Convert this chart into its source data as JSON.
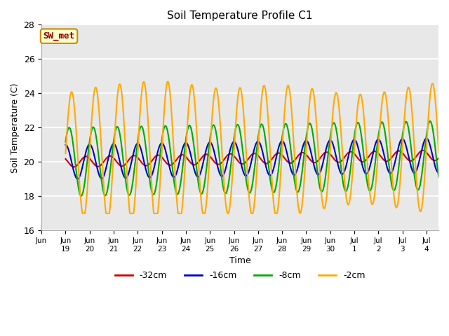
{
  "title": "Soil Temperature Profile C1",
  "xlabel": "Time",
  "ylabel": "Soil Temperature (C)",
  "ylim": [
    16,
    28
  ],
  "annotation": "SW_met",
  "annotation_bg": "#ffffcc",
  "annotation_border": "#cc8800",
  "annotation_text_color": "#880000",
  "bg_color": "#e8e8e8",
  "legend_labels": [
    "-32cm",
    "-16cm",
    "-8cm",
    "-2cm"
  ],
  "legend_colors": [
    "#cc0000",
    "#0000cc",
    "#00aa00",
    "#ffaa00"
  ],
  "tick_labels": [
    "Jun\n19",
    "Jun\n20",
    "Jun\n21",
    "Jun\n22",
    "Jun\n23",
    "Jun\n24",
    "Jun\n25",
    "Jun\n26",
    "Jun\n27",
    "Jun\n28",
    "Jun\n29",
    "Jun\n30",
    "Jul\n1",
    "Jul\n2",
    "Jul\n3",
    "Jul\n4"
  ],
  "tick_positions": [
    0,
    1,
    2,
    3,
    4,
    5,
    6,
    7,
    8,
    9,
    10,
    11,
    12,
    13,
    14,
    15
  ],
  "first_tick": -1,
  "n_days": 16
}
